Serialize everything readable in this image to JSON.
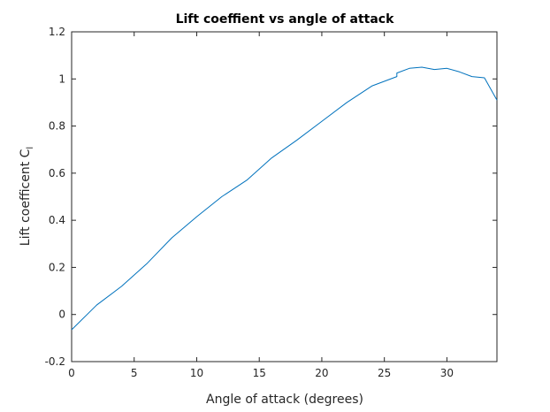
{
  "chart_data": {
    "type": "line",
    "title": "Lift coeffient vs angle of attack",
    "xlabel": "Angle of attack (degrees)",
    "ylabel": {
      "main": "Lift coefficent C",
      "subscript": "l"
    },
    "xlim": [
      0,
      34
    ],
    "ylim": [
      -0.2,
      1.2
    ],
    "xticks": [
      0,
      5,
      10,
      15,
      20,
      25,
      30
    ],
    "yticks": [
      -0.2,
      0,
      0.2,
      0.4,
      0.6,
      0.8,
      1,
      1.2
    ],
    "xtick_labels": [
      "0",
      "5",
      "10",
      "15",
      "20",
      "25",
      "30"
    ],
    "ytick_labels": [
      "-0.2",
      "0",
      "0.2",
      "0.4",
      "0.6",
      "0.8",
      "1",
      "1.2"
    ],
    "grid": false,
    "line_color": "#0072BD",
    "series": [
      {
        "x": [
          0,
          2,
          4,
          6,
          8,
          10,
          12,
          14,
          16,
          18,
          20,
          22,
          24,
          26,
          26,
          27,
          28,
          29,
          30,
          31,
          32,
          33,
          34
        ],
        "values": [
          -0.065,
          0.04,
          0.12,
          0.215,
          0.325,
          0.415,
          0.5,
          0.57,
          0.665,
          0.74,
          0.82,
          0.9,
          0.97,
          1.01,
          1.025,
          1.045,
          1.05,
          1.04,
          1.045,
          1.03,
          1.01,
          1.005,
          0.91
        ]
      }
    ]
  }
}
